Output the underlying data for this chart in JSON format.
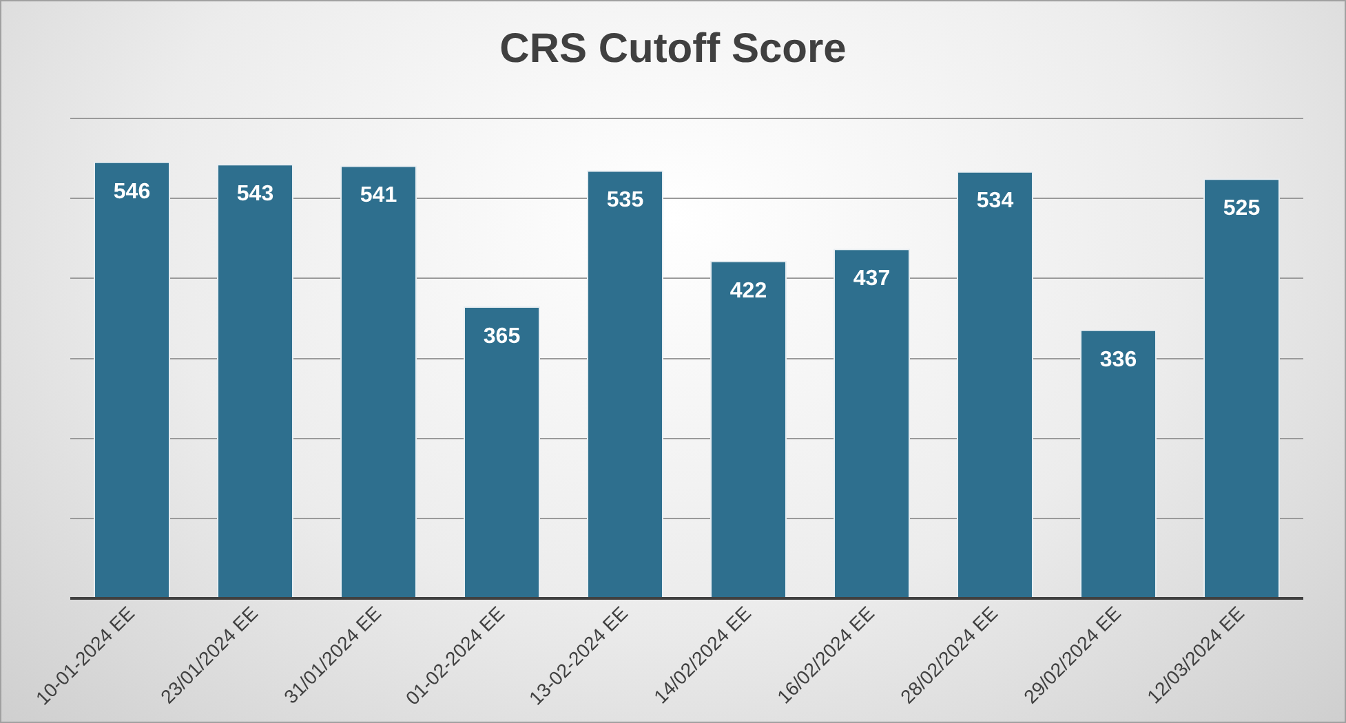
{
  "chart_data": {
    "type": "bar",
    "title": "CRS Cutoff Score",
    "categories": [
      "10-01-2024 EE",
      "23/01/2024 EE",
      "31/01/2024 EE",
      "01-02-2024 EE",
      "13-02-2024 EE",
      "14/02/2024 EE",
      "16/02/2024 EE",
      "28/02/2024 EE",
      "29/02/2024 EE",
      "12/03/2024 EE"
    ],
    "values": [
      546,
      543,
      541,
      365,
      535,
      422,
      437,
      534,
      336,
      525
    ],
    "color": "#2e6f8e",
    "ylim": [
      0,
      600
    ],
    "yticks": [
      {
        "value": 0,
        "label": null
      },
      {
        "value": 100,
        "label": null
      },
      {
        "value": 200,
        "label": null
      },
      {
        "value": 300,
        "label": null
      },
      {
        "value": 400,
        "label": null
      },
      {
        "value": 500,
        "label": null
      },
      {
        "value": 600,
        "label": null
      }
    ],
    "grid": "y",
    "data_labels": true,
    "legend": false
  }
}
